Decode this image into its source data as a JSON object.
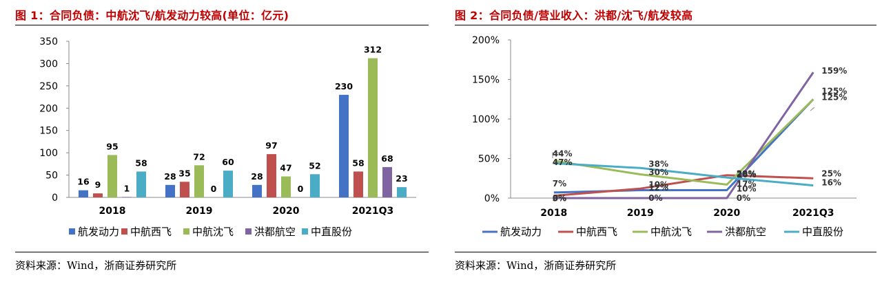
{
  "figures": [
    {
      "title": "图 1：合同负债：中航沈飞/航发动力较高(单位：亿元)",
      "source": "资料来源：Wind，浙商证券研究所"
    },
    {
      "title": "图 2：合同负债/营业收入：洪都/沈飞/航发较高",
      "source": "资料来源：Wind，浙商证券研究所"
    }
  ],
  "chart_data": [
    {
      "type": "bar",
      "title": "",
      "xlabel": "",
      "ylabel": "",
      "categories": [
        "2018",
        "2019",
        "2020",
        "2021Q3"
      ],
      "ylim": [
        0,
        350
      ],
      "yticks": [
        0,
        50,
        100,
        150,
        200,
        250,
        300,
        350
      ],
      "ytick_labels": [
        "0",
        "50",
        "100",
        "150",
        "200",
        "250",
        "300",
        "350"
      ],
      "grid": false,
      "legend_position": "bottom",
      "series": [
        {
          "name": "航发动力",
          "color": "#4472c4",
          "values": [
            16,
            28,
            28,
            230
          ]
        },
        {
          "name": "中航西飞",
          "color": "#c0504d",
          "values": [
            9,
            35,
            97,
            58
          ]
        },
        {
          "name": "中航沈飞",
          "color": "#9bbb59",
          "values": [
            95,
            72,
            47,
            312
          ]
        },
        {
          "name": "洪都航空",
          "color": "#8064a2",
          "values": [
            1,
            0,
            0,
            68
          ]
        },
        {
          "name": "中直股份",
          "color": "#4bacc6",
          "values": [
            58,
            60,
            52,
            23
          ]
        }
      ],
      "data_labels": [
        [
          "16",
          "28",
          "28",
          "230"
        ],
        [
          "9",
          "35",
          "97",
          "58"
        ],
        [
          "95",
          "72",
          "47",
          "312"
        ],
        [
          "1",
          "0",
          "0",
          "68"
        ],
        [
          "58",
          "60",
          "52",
          "23"
        ]
      ]
    },
    {
      "type": "line",
      "title": "",
      "xlabel": "",
      "ylabel": "",
      "categories": [
        "2018",
        "2019",
        "2020",
        "2021Q3"
      ],
      "ylim": [
        0,
        2.0
      ],
      "yticks": [
        0,
        0.5,
        1.0,
        1.5,
        2.0
      ],
      "ytick_labels": [
        "0%",
        "50%",
        "100%",
        "150%",
        "200%"
      ],
      "grid": false,
      "legend_position": "bottom",
      "series": [
        {
          "name": "航发动力",
          "color": "#4472c4",
          "values": [
            0.07,
            0.1,
            0.1,
            1.25
          ]
        },
        {
          "name": "中航西飞",
          "color": "#c0504d",
          "values": [
            0.03,
            0.12,
            0.29,
            0.25
          ]
        },
        {
          "name": "中航沈飞",
          "color": "#9bbb59",
          "values": [
            0.47,
            0.3,
            0.17,
            1.25
          ]
        },
        {
          "name": "洪都航空",
          "color": "#8064a2",
          "values": [
            0.0,
            0.0,
            0.0,
            1.59
          ]
        },
        {
          "name": "中直股份",
          "color": "#4bacc6",
          "values": [
            0.44,
            0.38,
            0.26,
            0.16
          ]
        }
      ],
      "data_labels": [
        [
          "7%",
          "10%",
          "10%",
          "125%"
        ],
        [
          "3%",
          "12%",
          "29%",
          "25%"
        ],
        [
          "47%",
          "30%",
          "17%",
          "125%"
        ],
        [
          "0%",
          "0%",
          "0%",
          "159%"
        ],
        [
          "44%",
          "38%",
          "26%",
          "16%"
        ]
      ]
    }
  ]
}
